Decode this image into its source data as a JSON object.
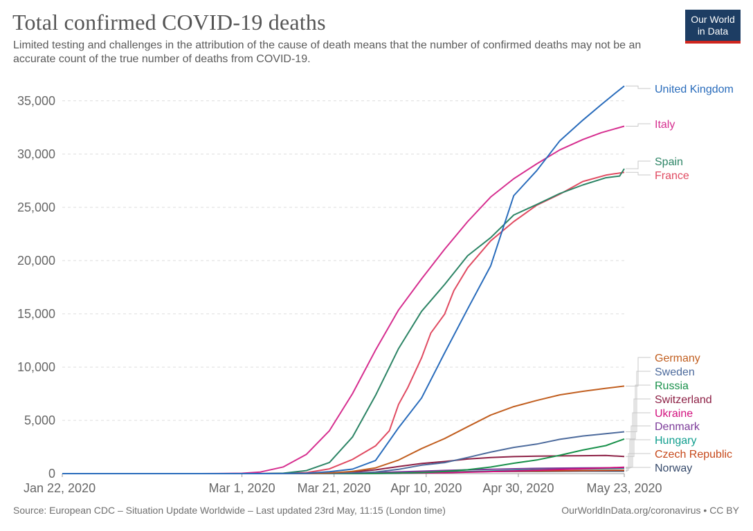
{
  "header": {
    "title": "Total confirmed COVID-19 deaths",
    "subtitle": "Limited testing and challenges in the attribution of the cause of death means that the number of confirmed deaths may not be an accurate count of the true number of deaths from COVID-19."
  },
  "logo": {
    "line1": "Our World",
    "line2": "in Data",
    "bg_color": "#1d3d63",
    "stripe_color": "#ce261e"
  },
  "footer": {
    "source": "Source: European CDC – Situation Update Worldwide – Last updated 23rd May, 11:15 (London time)",
    "credit": "OurWorldInData.org/coronavirus • CC BY"
  },
  "chart_data": {
    "type": "line",
    "title": "Total confirmed COVID-19 deaths",
    "xlabel": "",
    "ylabel": "",
    "ylim": [
      0,
      37000
    ],
    "yticks": [
      0,
      5000,
      10000,
      15000,
      20000,
      25000,
      30000,
      35000
    ],
    "ytick_labels": [
      "0",
      "5,000",
      "10,000",
      "15,000",
      "20,000",
      "25,000",
      "30,000",
      "35,000"
    ],
    "x_range": [
      "2020-01-22",
      "2020-05-23"
    ],
    "xticks": [
      "2020-01-22",
      "2020-03-01",
      "2020-03-21",
      "2020-04-10",
      "2020-04-30",
      "2020-05-23"
    ],
    "xtick_labels": [
      "Jan 22, 2020",
      "Mar 1, 2020",
      "Mar 21, 2020",
      "Apr 10, 2020",
      "Apr 30, 2020",
      "May 23, 2020"
    ],
    "grid": "horizontal dashed",
    "legend": "right, labels at line ends",
    "series": [
      {
        "name": "United Kingdom",
        "color": "#286bbb",
        "points": [
          [
            "2020-01-22",
            0
          ],
          [
            "2020-03-05",
            0
          ],
          [
            "2020-03-10",
            6
          ],
          [
            "2020-03-15",
            35
          ],
          [
            "2020-03-20",
            177
          ],
          [
            "2020-03-25",
            422
          ],
          [
            "2020-03-30",
            1228
          ],
          [
            "2020-04-04",
            4313
          ],
          [
            "2020-04-09",
            7097
          ],
          [
            "2020-04-14",
            11329
          ],
          [
            "2020-04-19",
            15464
          ],
          [
            "2020-04-24",
            19506
          ],
          [
            "2020-04-29",
            26097
          ],
          [
            "2020-05-04",
            28446
          ],
          [
            "2020-05-09",
            31241
          ],
          [
            "2020-05-14",
            33186
          ],
          [
            "2020-05-18",
            34636
          ],
          [
            "2020-05-21",
            35704
          ],
          [
            "2020-05-23",
            36393
          ]
        ]
      },
      {
        "name": "Italy",
        "color": "#d62e8f",
        "points": [
          [
            "2020-01-22",
            0
          ],
          [
            "2020-02-21",
            0
          ],
          [
            "2020-02-25",
            7
          ],
          [
            "2020-03-01",
            34
          ],
          [
            "2020-03-05",
            148
          ],
          [
            "2020-03-10",
            631
          ],
          [
            "2020-03-15",
            1809
          ],
          [
            "2020-03-20",
            4032
          ],
          [
            "2020-03-25",
            7503
          ],
          [
            "2020-03-30",
            11591
          ],
          [
            "2020-04-04",
            15362
          ],
          [
            "2020-04-09",
            18279
          ],
          [
            "2020-04-14",
            21067
          ],
          [
            "2020-04-19",
            23660
          ],
          [
            "2020-04-24",
            25969
          ],
          [
            "2020-04-29",
            27682
          ],
          [
            "2020-05-04",
            29079
          ],
          [
            "2020-05-09",
            30395
          ],
          [
            "2020-05-14",
            31368
          ],
          [
            "2020-05-18",
            32007
          ],
          [
            "2020-05-23",
            32616
          ]
        ]
      },
      {
        "name": "Spain",
        "color": "#2c8465",
        "points": [
          [
            "2020-01-22",
            0
          ],
          [
            "2020-03-03",
            0
          ],
          [
            "2020-03-06",
            5
          ],
          [
            "2020-03-10",
            36
          ],
          [
            "2020-03-15",
            288
          ],
          [
            "2020-03-20",
            1043
          ],
          [
            "2020-03-25",
            3434
          ],
          [
            "2020-03-30",
            7340
          ],
          [
            "2020-04-04",
            11744
          ],
          [
            "2020-04-09",
            15238
          ],
          [
            "2020-04-14",
            17756
          ],
          [
            "2020-04-19",
            20453
          ],
          [
            "2020-04-24",
            22157
          ],
          [
            "2020-04-29",
            24275
          ],
          [
            "2020-05-04",
            25264
          ],
          [
            "2020-05-09",
            26299
          ],
          [
            "2020-05-14",
            27104
          ],
          [
            "2020-05-19",
            27778
          ],
          [
            "2020-05-22",
            27940
          ],
          [
            "2020-05-23",
            28628
          ]
        ]
      },
      {
        "name": "France",
        "color": "#e04a61",
        "points": [
          [
            "2020-01-22",
            0
          ],
          [
            "2020-03-01",
            2
          ],
          [
            "2020-03-05",
            4
          ],
          [
            "2020-03-10",
            33
          ],
          [
            "2020-03-15",
            91
          ],
          [
            "2020-03-20",
            450
          ],
          [
            "2020-03-25",
            1331
          ],
          [
            "2020-03-30",
            2606
          ],
          [
            "2020-04-02",
            4032
          ],
          [
            "2020-04-04",
            6507
          ],
          [
            "2020-04-06",
            8078
          ],
          [
            "2020-04-09",
            10869
          ],
          [
            "2020-04-11",
            13197
          ],
          [
            "2020-04-14",
            14967
          ],
          [
            "2020-04-16",
            17167
          ],
          [
            "2020-04-19",
            19323
          ],
          [
            "2020-04-24",
            21856
          ],
          [
            "2020-04-29",
            23660
          ],
          [
            "2020-05-04",
            25201
          ],
          [
            "2020-05-09",
            26230
          ],
          [
            "2020-05-14",
            27425
          ],
          [
            "2020-05-19",
            28022
          ],
          [
            "2020-05-23",
            28289
          ]
        ]
      },
      {
        "name": "Germany",
        "color": "#c15e1f",
        "points": [
          [
            "2020-01-22",
            0
          ],
          [
            "2020-03-08",
            0
          ],
          [
            "2020-03-10",
            2
          ],
          [
            "2020-03-15",
            12
          ],
          [
            "2020-03-20",
            67
          ],
          [
            "2020-03-25",
            206
          ],
          [
            "2020-03-30",
            541
          ],
          [
            "2020-04-04",
            1275
          ],
          [
            "2020-04-09",
            2349
          ],
          [
            "2020-04-14",
            3294
          ],
          [
            "2020-04-19",
            4404
          ],
          [
            "2020-04-24",
            5500
          ],
          [
            "2020-04-29",
            6288
          ],
          [
            "2020-05-04",
            6866
          ],
          [
            "2020-05-09",
            7392
          ],
          [
            "2020-05-14",
            7723
          ],
          [
            "2020-05-19",
            8007
          ],
          [
            "2020-05-23",
            8216
          ]
        ]
      },
      {
        "name": "Sweden",
        "color": "#4c6a9c",
        "points": [
          [
            "2020-01-22",
            0
          ],
          [
            "2020-03-10",
            0
          ],
          [
            "2020-03-12",
            1
          ],
          [
            "2020-03-20",
            16
          ],
          [
            "2020-03-25",
            62
          ],
          [
            "2020-03-30",
            146
          ],
          [
            "2020-04-04",
            401
          ],
          [
            "2020-04-09",
            793
          ],
          [
            "2020-04-14",
            1033
          ],
          [
            "2020-04-19",
            1511
          ],
          [
            "2020-04-24",
            2021
          ],
          [
            "2020-04-29",
            2462
          ],
          [
            "2020-05-04",
            2769
          ],
          [
            "2020-05-09",
            3220
          ],
          [
            "2020-05-14",
            3529
          ],
          [
            "2020-05-19",
            3743
          ],
          [
            "2020-05-23",
            3925
          ]
        ]
      },
      {
        "name": "Russia",
        "color": "#18904a",
        "points": [
          [
            "2020-01-22",
            0
          ],
          [
            "2020-03-18",
            0
          ],
          [
            "2020-03-20",
            1
          ],
          [
            "2020-03-25",
            3
          ],
          [
            "2020-03-30",
            17
          ],
          [
            "2020-04-04",
            43
          ],
          [
            "2020-04-09",
            94
          ],
          [
            "2020-04-14",
            198
          ],
          [
            "2020-04-19",
            361
          ],
          [
            "2020-04-24",
            615
          ],
          [
            "2020-04-29",
            972
          ],
          [
            "2020-05-04",
            1280
          ],
          [
            "2020-05-09",
            1723
          ],
          [
            "2020-05-14",
            2212
          ],
          [
            "2020-05-19",
            2631
          ],
          [
            "2020-05-23",
            3249
          ]
        ]
      },
      {
        "name": "Switzerland",
        "color": "#8c1f44",
        "points": [
          [
            "2020-01-22",
            0
          ],
          [
            "2020-03-04",
            0
          ],
          [
            "2020-03-06",
            1
          ],
          [
            "2020-03-15",
            14
          ],
          [
            "2020-03-20",
            56
          ],
          [
            "2020-03-25",
            153
          ],
          [
            "2020-03-30",
            359
          ],
          [
            "2020-04-04",
            666
          ],
          [
            "2020-04-09",
            948
          ],
          [
            "2020-04-14",
            1138
          ],
          [
            "2020-04-19",
            1368
          ],
          [
            "2020-04-24",
            1509
          ],
          [
            "2020-04-29",
            1599
          ],
          [
            "2020-05-04",
            1637
          ],
          [
            "2020-05-09",
            1664
          ],
          [
            "2020-05-14",
            1684
          ],
          [
            "2020-05-19",
            1700
          ],
          [
            "2020-05-23",
            1610
          ]
        ]
      },
      {
        "name": "Ukraine",
        "color": "#d20f7d",
        "points": [
          [
            "2020-01-22",
            0
          ],
          [
            "2020-03-12",
            0
          ],
          [
            "2020-03-14",
            1
          ],
          [
            "2020-03-25",
            5
          ],
          [
            "2020-04-04",
            32
          ],
          [
            "2020-04-14",
            83
          ],
          [
            "2020-04-24",
            187
          ],
          [
            "2020-05-04",
            316
          ],
          [
            "2020-05-14",
            456
          ],
          [
            "2020-05-23",
            605
          ]
        ]
      },
      {
        "name": "Denmark",
        "color": "#7c3b99",
        "points": [
          [
            "2020-01-22",
            0
          ],
          [
            "2020-03-13",
            0
          ],
          [
            "2020-03-15",
            4
          ],
          [
            "2020-03-25",
            41
          ],
          [
            "2020-04-04",
            161
          ],
          [
            "2020-04-14",
            299
          ],
          [
            "2020-04-24",
            403
          ],
          [
            "2020-05-04",
            493
          ],
          [
            "2020-05-14",
            537
          ],
          [
            "2020-05-23",
            561
          ]
        ]
      },
      {
        "name": "Hungary",
        "color": "#109e8e",
        "points": [
          [
            "2020-01-22",
            0
          ],
          [
            "2020-03-14",
            0
          ],
          [
            "2020-03-16",
            1
          ],
          [
            "2020-03-25",
            10
          ],
          [
            "2020-04-04",
            26
          ],
          [
            "2020-04-14",
            122
          ],
          [
            "2020-04-24",
            239
          ],
          [
            "2020-05-04",
            373
          ],
          [
            "2020-05-14",
            436
          ],
          [
            "2020-05-23",
            499
          ]
        ]
      },
      {
        "name": "Czech Republic",
        "color": "#c6481a",
        "points": [
          [
            "2020-01-22",
            0
          ],
          [
            "2020-03-20",
            0
          ],
          [
            "2020-03-22",
            1
          ],
          [
            "2020-03-30",
            31
          ],
          [
            "2020-04-04",
            59
          ],
          [
            "2020-04-14",
            161
          ],
          [
            "2020-04-24",
            214
          ],
          [
            "2020-05-04",
            252
          ],
          [
            "2020-05-14",
            287
          ],
          [
            "2020-05-23",
            309
          ]
        ]
      },
      {
        "name": "Norway",
        "color": "#364a6b",
        "points": [
          [
            "2020-01-22",
            0
          ],
          [
            "2020-03-11",
            0
          ],
          [
            "2020-03-13",
            1
          ],
          [
            "2020-03-25",
            14
          ],
          [
            "2020-04-04",
            59
          ],
          [
            "2020-04-14",
            128
          ],
          [
            "2020-04-24",
            193
          ],
          [
            "2020-05-04",
            214
          ],
          [
            "2020-05-14",
            232
          ],
          [
            "2020-05-23",
            235
          ]
        ]
      }
    ]
  }
}
